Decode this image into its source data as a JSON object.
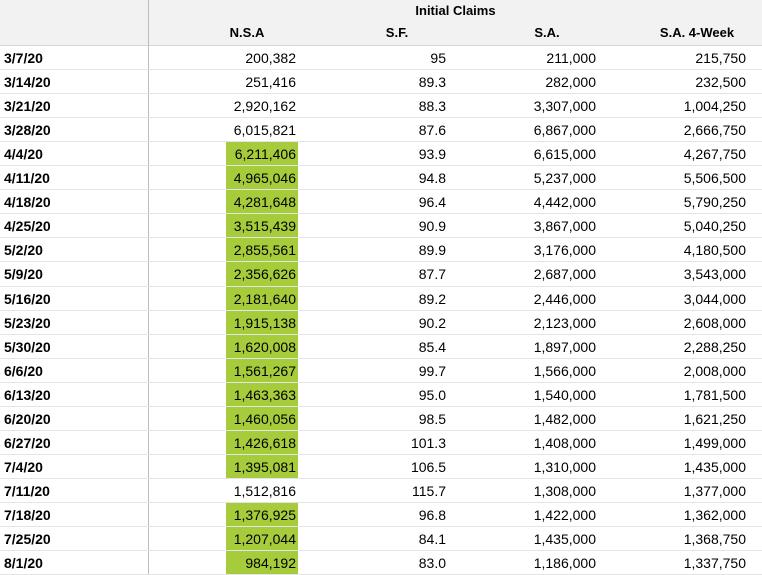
{
  "table": {
    "title": "Initial Claims",
    "columns": [
      "N.S.A",
      "S.F.",
      "S.A.",
      "S.A. 4-Week"
    ],
    "highlight_color": "#a6cc3c",
    "rows": [
      [
        "3/7/20",
        "200,382",
        "95",
        "211,000",
        "215,750"
      ],
      [
        "3/14/20",
        "251,416",
        "89.3",
        "282,000",
        "232,500"
      ],
      [
        "3/21/20",
        "2,920,162",
        "88.3",
        "3,307,000",
        "1,004,250"
      ],
      [
        "3/28/20",
        "6,015,821",
        "87.6",
        "6,867,000",
        "2,666,750"
      ],
      [
        "4/4/20",
        "6,211,406",
        "93.9",
        "6,615,000",
        "4,267,750"
      ],
      [
        "4/11/20",
        "4,965,046",
        "94.8",
        "5,237,000",
        "5,506,500"
      ],
      [
        "4/18/20",
        "4,281,648",
        "96.4",
        "4,442,000",
        "5,790,250"
      ],
      [
        "4/25/20",
        "3,515,439",
        "90.9",
        "3,867,000",
        "5,040,250"
      ],
      [
        "5/2/20",
        "2,855,561",
        "89.9",
        "3,176,000",
        "4,180,500"
      ],
      [
        "5/9/20",
        "2,356,626",
        "87.7",
        "2,687,000",
        "3,543,000"
      ],
      [
        "5/16/20",
        "2,181,640",
        "89.2",
        "2,446,000",
        "3,044,000"
      ],
      [
        "5/23/20",
        "1,915,138",
        "90.2",
        "2,123,000",
        "2,608,000"
      ],
      [
        "5/30/20",
        "1,620,008",
        "85.4",
        "1,897,000",
        "2,288,250"
      ],
      [
        "6/6/20",
        "1,561,267",
        "99.7",
        "1,566,000",
        "2,008,000"
      ],
      [
        "6/13/20",
        "1,463,363",
        "95.0",
        "1,540,000",
        "1,781,500"
      ],
      [
        "6/20/20",
        "1,460,056",
        "98.5",
        "1,482,000",
        "1,621,250"
      ],
      [
        "6/27/20",
        "1,426,618",
        "101.3",
        "1,408,000",
        "1,499,000"
      ],
      [
        "7/4/20",
        "1,395,081",
        "106.5",
        "1,310,000",
        "1,435,000"
      ],
      [
        "7/11/20",
        "1,512,816",
        "115.7",
        "1,308,000",
        "1,377,000"
      ],
      [
        "7/18/20",
        "1,376,925",
        "96.8",
        "1,422,000",
        "1,362,000"
      ],
      [
        "7/25/20",
        "1,207,044",
        "84.1",
        "1,435,000",
        "1,368,750"
      ],
      [
        "8/1/20",
        "984,192",
        "83.0",
        "1,186,000",
        "1,337,750"
      ]
    ],
    "nsa_highlight": [
      false,
      false,
      false,
      false,
      true,
      true,
      true,
      true,
      true,
      true,
      true,
      true,
      true,
      true,
      true,
      true,
      true,
      true,
      false,
      true,
      true,
      true
    ]
  }
}
